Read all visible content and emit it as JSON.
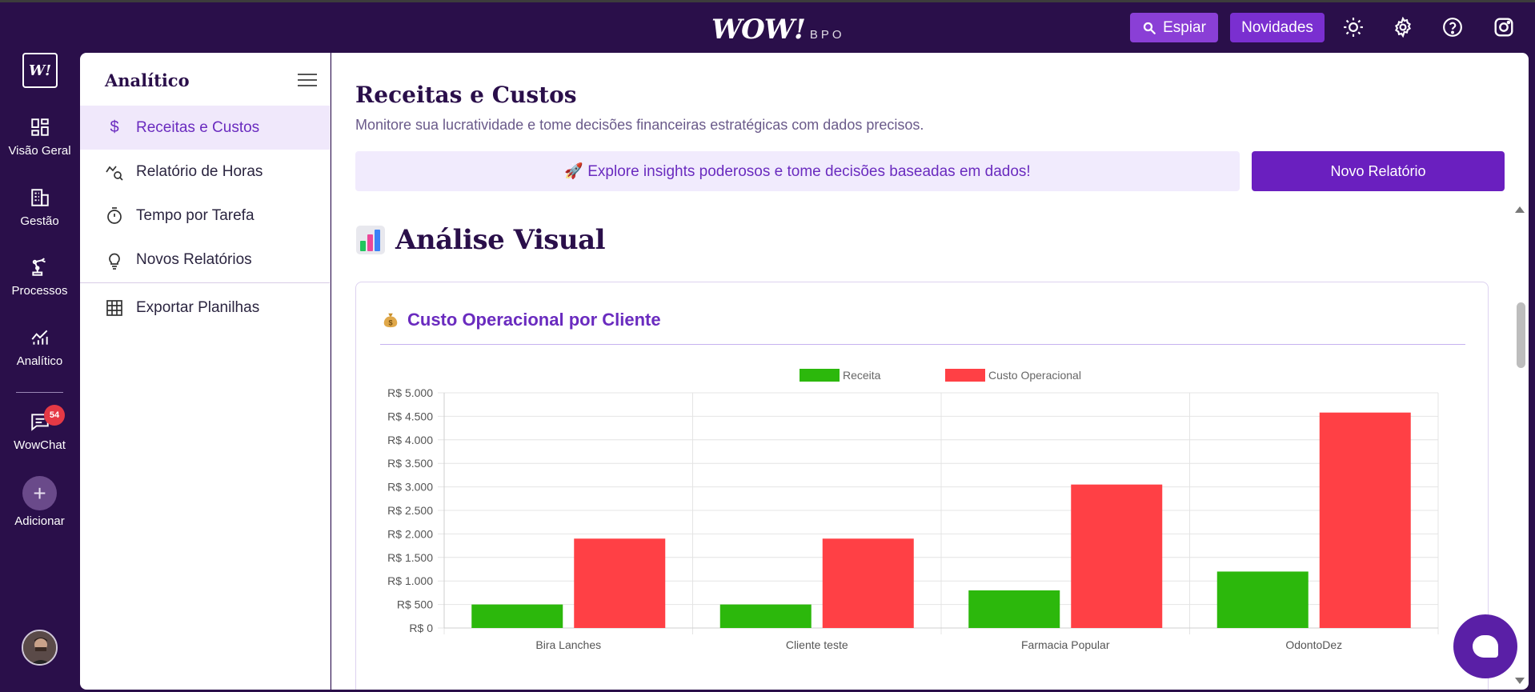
{
  "topbar": {
    "logo_main": "WOW!",
    "logo_sub": "BPO",
    "espiar_label": "Espiar",
    "novidades_label": "Novidades"
  },
  "rail": {
    "logo": "W!",
    "items": [
      {
        "label": "Visão Geral",
        "icon": "grid-icon"
      },
      {
        "label": "Gestão",
        "icon": "building-icon"
      },
      {
        "label": "Processos",
        "icon": "robot-arm-icon"
      },
      {
        "label": "Analítico",
        "icon": "chart-line-icon"
      },
      {
        "label": "WowChat",
        "icon": "chat-icon"
      },
      {
        "label": "Adicionar",
        "icon": "plus-icon"
      }
    ],
    "chat_badge": "54"
  },
  "subnav": {
    "title": "Analítico",
    "items": [
      {
        "label": "Receitas e Custos",
        "icon": "dollar-icon"
      },
      {
        "label": "Relatório de Horas",
        "icon": "trend-search-icon"
      },
      {
        "label": "Tempo por Tarefa",
        "icon": "timer-icon"
      },
      {
        "label": "Novos Relatórios",
        "icon": "lightbulb-icon"
      },
      {
        "label": "Exportar Planilhas",
        "icon": "table-icon"
      }
    ]
  },
  "main": {
    "title": "Receitas e Custos",
    "subtitle": "Monitore sua lucratividade e tome decisões financeiras estratégicas com dados precisos.",
    "insight": "🚀 Explore insights poderosos e tome decisões baseadas em dados!",
    "new_report_label": "Novo Relatório",
    "section_title": "Análise Visual",
    "card_title": "Custo Operacional por Cliente"
  },
  "colors": {
    "receita": "#2cb80c",
    "custo": "#ff4045",
    "accent": "#6a2bbf",
    "sidebar_bg": "#2a0f4a"
  },
  "chart_data": {
    "type": "bar",
    "categories": [
      "Bira Lanches",
      "Cliente teste",
      "Farmacia Popular",
      "OdontoDez"
    ],
    "series": [
      {
        "name": "Receita",
        "values": [
          500,
          500,
          800,
          1200
        ]
      },
      {
        "name": "Custo Operacional",
        "values": [
          1900,
          1900,
          3050,
          4580
        ]
      }
    ],
    "ylim": [
      0,
      5000
    ],
    "yticks": [
      0,
      500,
      1000,
      1500,
      2000,
      2500,
      3000,
      3500,
      4000,
      4500,
      5000
    ],
    "ytick_labels": [
      "R$ 0",
      "R$ 500",
      "R$ 1.000",
      "R$ 1.500",
      "R$ 2.000",
      "R$ 2.500",
      "R$ 3.000",
      "R$ 3.500",
      "R$ 4.000",
      "R$ 4.500",
      "R$ 5.000"
    ],
    "legend_position": "top-center",
    "grid": true
  }
}
